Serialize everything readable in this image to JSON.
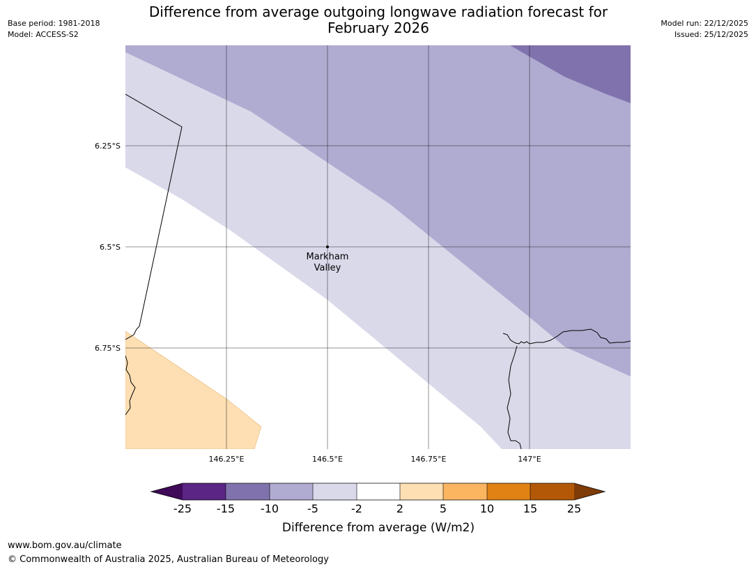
{
  "header": {
    "title_line1": "Difference from average outgoing longwave radiation forecast for",
    "title_line2": "February 2026",
    "base_period": "Base period: 1981-2018",
    "model": "Model: ACCESS-S2",
    "model_run": "Model run: 22/12/2025",
    "issued": "Issued: 25/12/2025"
  },
  "map": {
    "lat_labels": [
      "6.25°S",
      "6.5°S",
      "6.75°S"
    ],
    "lon_labels": [
      "146.25°E",
      "146.5°E",
      "146.75°E",
      "147°E"
    ],
    "place": {
      "name_line1": "Markham",
      "name_line2": "Valley"
    }
  },
  "legend": {
    "title": "Difference from average (W/m2)",
    "ticks": [
      "-25",
      "-15",
      "-10",
      "-5",
      "-2",
      "2",
      "5",
      "10",
      "15",
      "25"
    ],
    "colors": {
      "below_-25": "#3f0a58",
      "-25_to_-15": "#5a2585",
      "-15_to_-10": "#8073ad",
      "-10_to_-5": "#b0abd1",
      "-5_to_-2": "#d9d9ea",
      "-2_to_2": "#ffffff",
      "2_to_5": "#fddfb3",
      "5_to_10": "#fbb561",
      "10_to_15": "#e08214",
      "15_to_25": "#b35806",
      "above_25": "#7f3b08"
    }
  },
  "footer": {
    "url": "www.bom.gov.au/climate",
    "copyright": "© Commonwealth of Australia 2025, Australian Bureau of Meteorology"
  }
}
